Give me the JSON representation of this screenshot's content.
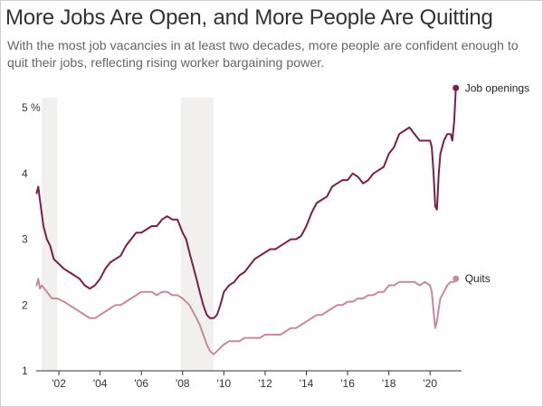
{
  "header": {
    "title": "More Jobs Are Open, and More People Are Quitting",
    "subtitle": "With the most job vacancies in at least two decades, more people are confident enough to quit their jobs, reflecting rising worker bargaining power."
  },
  "colors": {
    "job_openings": "#7a2048",
    "quits": "#c68a9f",
    "recession": "#f1f0ee",
    "axis": "#333333"
  },
  "chart_data": {
    "type": "line",
    "title": "More Jobs Are Open, and More People Are Quitting",
    "ylim": [
      1,
      5.4
    ],
    "xlim": [
      2000.9,
      2021.35
    ],
    "grid": false,
    "y_ticks": [
      {
        "value": 1,
        "label": "1"
      },
      {
        "value": 2,
        "label": "2"
      },
      {
        "value": 3,
        "label": "3"
      },
      {
        "value": 4,
        "label": "4"
      },
      {
        "value": 5,
        "label": "5 %"
      }
    ],
    "x_ticks": [
      {
        "value": 2002,
        "label": "'02"
      },
      {
        "value": 2004,
        "label": "'04"
      },
      {
        "value": 2006,
        "label": "'06"
      },
      {
        "value": 2008,
        "label": "'08"
      },
      {
        "value": 2010,
        "label": "'10"
      },
      {
        "value": 2012,
        "label": "'12"
      },
      {
        "value": 2014,
        "label": "'14"
      },
      {
        "value": 2016,
        "label": "'16"
      },
      {
        "value": 2018,
        "label": "'18"
      },
      {
        "value": 2020,
        "label": "'20"
      }
    ],
    "recessions": [
      {
        "start": 2001.17,
        "end": 2001.92
      },
      {
        "start": 2007.92,
        "end": 2009.5
      }
    ],
    "series": [
      {
        "name": "Job openings",
        "key": "job_openings",
        "x": [
          2000.92,
          2001.0,
          2001.08,
          2001.25,
          2001.42,
          2001.58,
          2001.75,
          2001.92,
          2002.08,
          2002.25,
          2002.5,
          2002.75,
          2003.0,
          2003.25,
          2003.5,
          2003.75,
          2004.0,
          2004.25,
          2004.5,
          2004.75,
          2005.0,
          2005.25,
          2005.5,
          2005.75,
          2006.0,
          2006.25,
          2006.5,
          2006.75,
          2007.0,
          2007.25,
          2007.5,
          2007.75,
          2008.0,
          2008.17,
          2008.33,
          2008.5,
          2008.67,
          2008.83,
          2009.0,
          2009.17,
          2009.33,
          2009.5,
          2009.67,
          2009.83,
          2010.0,
          2010.25,
          2010.5,
          2010.75,
          2011.0,
          2011.25,
          2011.5,
          2011.75,
          2012.0,
          2012.25,
          2012.5,
          2012.75,
          2013.0,
          2013.25,
          2013.5,
          2013.75,
          2014.0,
          2014.25,
          2014.5,
          2014.75,
          2015.0,
          2015.25,
          2015.5,
          2015.75,
          2016.0,
          2016.25,
          2016.5,
          2016.75,
          2017.0,
          2017.25,
          2017.5,
          2017.75,
          2018.0,
          2018.25,
          2018.5,
          2018.75,
          2019.0,
          2019.25,
          2019.5,
          2019.75,
          2020.0,
          2020.08,
          2020.17,
          2020.25,
          2020.33,
          2020.42,
          2020.5,
          2020.67,
          2020.83,
          2021.0,
          2021.08,
          2021.17,
          2021.25
        ],
        "y": [
          3.7,
          3.8,
          3.6,
          3.2,
          3.0,
          2.9,
          2.7,
          2.65,
          2.6,
          2.55,
          2.5,
          2.45,
          2.4,
          2.3,
          2.25,
          2.3,
          2.4,
          2.55,
          2.65,
          2.7,
          2.75,
          2.9,
          3.0,
          3.1,
          3.1,
          3.15,
          3.2,
          3.2,
          3.3,
          3.35,
          3.3,
          3.3,
          3.1,
          3.0,
          2.8,
          2.6,
          2.4,
          2.2,
          2.0,
          1.85,
          1.8,
          1.8,
          1.85,
          2.0,
          2.2,
          2.3,
          2.35,
          2.45,
          2.5,
          2.6,
          2.7,
          2.75,
          2.8,
          2.85,
          2.85,
          2.9,
          2.95,
          3.0,
          3.0,
          3.05,
          3.2,
          3.4,
          3.55,
          3.6,
          3.65,
          3.8,
          3.85,
          3.9,
          3.9,
          4.0,
          3.95,
          3.85,
          3.9,
          4.0,
          4.05,
          4.1,
          4.3,
          4.4,
          4.6,
          4.65,
          4.7,
          4.6,
          4.5,
          4.5,
          4.5,
          4.4,
          4.0,
          3.5,
          3.45,
          4.0,
          4.3,
          4.5,
          4.6,
          4.6,
          4.5,
          4.8,
          5.3
        ]
      },
      {
        "name": "Quits",
        "key": "quits",
        "x": [
          2000.92,
          2001.0,
          2001.08,
          2001.17,
          2001.42,
          2001.67,
          2001.92,
          2002.25,
          2002.5,
          2002.75,
          2003.0,
          2003.25,
          2003.5,
          2003.75,
          2004.0,
          2004.25,
          2004.5,
          2004.75,
          2005.0,
          2005.25,
          2005.5,
          2005.75,
          2006.0,
          2006.25,
          2006.5,
          2006.75,
          2007.0,
          2007.25,
          2007.5,
          2007.75,
          2008.0,
          2008.17,
          2008.33,
          2008.5,
          2008.67,
          2008.83,
          2009.0,
          2009.17,
          2009.33,
          2009.5,
          2009.67,
          2009.83,
          2010.0,
          2010.25,
          2010.5,
          2010.75,
          2011.0,
          2011.25,
          2011.5,
          2011.75,
          2012.0,
          2012.25,
          2012.5,
          2012.75,
          2013.0,
          2013.25,
          2013.5,
          2013.75,
          2014.0,
          2014.25,
          2014.5,
          2014.75,
          2015.0,
          2015.25,
          2015.5,
          2015.75,
          2016.0,
          2016.25,
          2016.5,
          2016.75,
          2017.0,
          2017.25,
          2017.5,
          2017.75,
          2018.0,
          2018.25,
          2018.5,
          2018.75,
          2019.0,
          2019.25,
          2019.5,
          2019.75,
          2020.0,
          2020.08,
          2020.17,
          2020.25,
          2020.33,
          2020.42,
          2020.5,
          2020.67,
          2020.83,
          2021.0,
          2021.08,
          2021.17,
          2021.25
        ],
        "y": [
          2.3,
          2.4,
          2.25,
          2.3,
          2.2,
          2.1,
          2.1,
          2.05,
          2.0,
          1.95,
          1.9,
          1.85,
          1.8,
          1.8,
          1.85,
          1.9,
          1.95,
          2.0,
          2.0,
          2.05,
          2.1,
          2.15,
          2.2,
          2.2,
          2.2,
          2.15,
          2.2,
          2.2,
          2.15,
          2.15,
          2.1,
          2.05,
          2.0,
          1.9,
          1.8,
          1.7,
          1.55,
          1.4,
          1.3,
          1.25,
          1.3,
          1.35,
          1.4,
          1.45,
          1.45,
          1.45,
          1.5,
          1.5,
          1.5,
          1.5,
          1.55,
          1.55,
          1.55,
          1.55,
          1.6,
          1.65,
          1.65,
          1.7,
          1.75,
          1.8,
          1.85,
          1.85,
          1.9,
          1.95,
          2.0,
          2.0,
          2.05,
          2.05,
          2.1,
          2.1,
          2.15,
          2.15,
          2.2,
          2.2,
          2.3,
          2.3,
          2.35,
          2.35,
          2.35,
          2.35,
          2.3,
          2.35,
          2.3,
          2.2,
          1.9,
          1.65,
          1.75,
          1.95,
          2.1,
          2.2,
          2.3,
          2.35,
          2.35,
          2.35,
          2.4
        ]
      }
    ]
  }
}
